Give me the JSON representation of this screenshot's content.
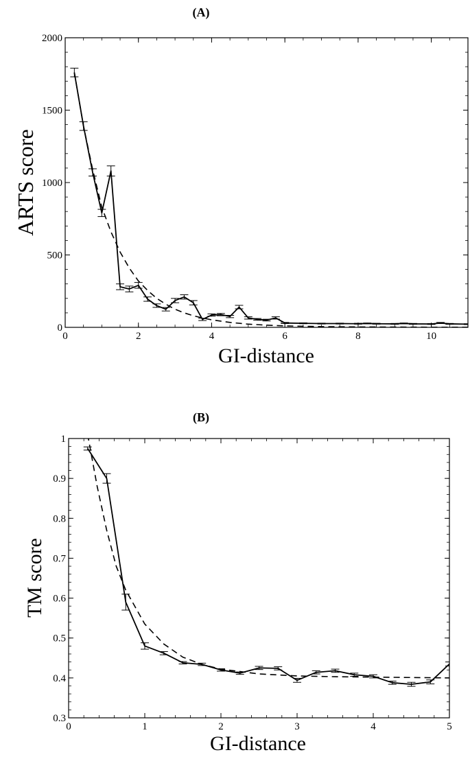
{
  "chart_data": [
    {
      "type": "line",
      "title": "(A)",
      "xlabel": "GI-distance",
      "ylabel": "ARTS score",
      "xlim": [
        0,
        11
      ],
      "ylim": [
        0,
        2000
      ],
      "xticks": [
        0,
        2,
        4,
        6,
        8,
        10
      ],
      "yticks": [
        0,
        500,
        1000,
        1500,
        2000
      ],
      "grid": false,
      "series": [
        {
          "style": "solid",
          "error_bars": true,
          "x": [
            0.25,
            0.5,
            0.75,
            1.0,
            1.25,
            1.5,
            1.75,
            2.0,
            2.25,
            2.5,
            2.75,
            3.0,
            3.25,
            3.5,
            3.75,
            4.0,
            4.25,
            4.5,
            4.75,
            5.0,
            5.25,
            5.5,
            5.75,
            6.0,
            6.5,
            7.0,
            7.5,
            8.0,
            8.25,
            8.5,
            9.0,
            9.25,
            9.5,
            10.0,
            10.25,
            10.5,
            11.0
          ],
          "y": [
            1760,
            1390,
            1070,
            790,
            1080,
            280,
            265,
            290,
            195,
            150,
            125,
            185,
            210,
            170,
            55,
            85,
            88,
            75,
            140,
            65,
            55,
            50,
            65,
            30,
            28,
            26,
            26,
            25,
            27,
            25,
            24,
            27,
            24,
            23,
            30,
            24,
            22
          ],
          "err": [
            30,
            30,
            25,
            25,
            35,
            20,
            20,
            20,
            15,
            12,
            12,
            15,
            15,
            15,
            8,
            8,
            8,
            8,
            12,
            8,
            6,
            6,
            8,
            4,
            3,
            3,
            3,
            3,
            3,
            3,
            3,
            3,
            3,
            3,
            4,
            3,
            3
          ]
        },
        {
          "style": "dashed",
          "error_bars": false,
          "x": [
            0.25,
            0.5,
            0.75,
            1.0,
            1.25,
            1.5,
            1.75,
            2.0,
            2.25,
            2.5,
            2.75,
            3.0,
            3.25,
            3.5,
            3.75,
            4.0,
            4.5,
            5.0,
            5.5,
            6.0,
            7.0,
            8.0,
            9.0,
            10.0,
            11.0
          ],
          "y": [
            1760,
            1390,
            1090,
            830,
            660,
            520,
            410,
            320,
            255,
            200,
            160,
            125,
            100,
            80,
            65,
            52,
            34,
            22,
            15,
            10,
            5,
            3,
            2,
            1,
            1
          ]
        }
      ]
    },
    {
      "type": "line",
      "title": "(B)",
      "xlabel": "GI-distance",
      "ylabel": "TM score",
      "xlim": [
        0,
        5
      ],
      "ylim": [
        0.3,
        1
      ],
      "xticks": [
        0,
        1,
        2,
        3,
        4,
        5
      ],
      "yticks": [
        0.3,
        0.4,
        0.5,
        0.6,
        0.7,
        0.8,
        0.9,
        1
      ],
      "grid": false,
      "series": [
        {
          "style": "solid",
          "error_bars": true,
          "x": [
            0.25,
            0.5,
            0.75,
            1.0,
            1.25,
            1.5,
            1.75,
            2.0,
            2.25,
            2.5,
            2.75,
            3.0,
            3.25,
            3.5,
            3.75,
            4.0,
            4.25,
            4.5,
            4.75,
            5.0
          ],
          "y": [
            0.975,
            0.9,
            0.59,
            0.48,
            0.462,
            0.438,
            0.434,
            0.42,
            0.412,
            0.425,
            0.424,
            0.394,
            0.414,
            0.418,
            0.408,
            0.404,
            0.388,
            0.384,
            0.39,
            0.435
          ],
          "err": [
            0.004,
            0.012,
            0.02,
            0.008,
            0.004,
            0.003,
            0.003,
            0.003,
            0.003,
            0.004,
            0.004,
            0.005,
            0.004,
            0.004,
            0.004,
            0.004,
            0.004,
            0.005,
            0.005,
            0.005
          ]
        },
        {
          "style": "dashed",
          "error_bars": false,
          "x": [
            0.25,
            0.375,
            0.5,
            0.625,
            0.75,
            1.0,
            1.25,
            1.5,
            1.75,
            2.0,
            2.5,
            3.0,
            3.5,
            4.0,
            4.5,
            5.0
          ],
          "y": [
            1.01,
            0.88,
            0.77,
            0.68,
            0.62,
            0.535,
            0.485,
            0.452,
            0.434,
            0.422,
            0.41,
            0.405,
            0.403,
            0.402,
            0.401,
            0.4
          ]
        }
      ]
    }
  ]
}
